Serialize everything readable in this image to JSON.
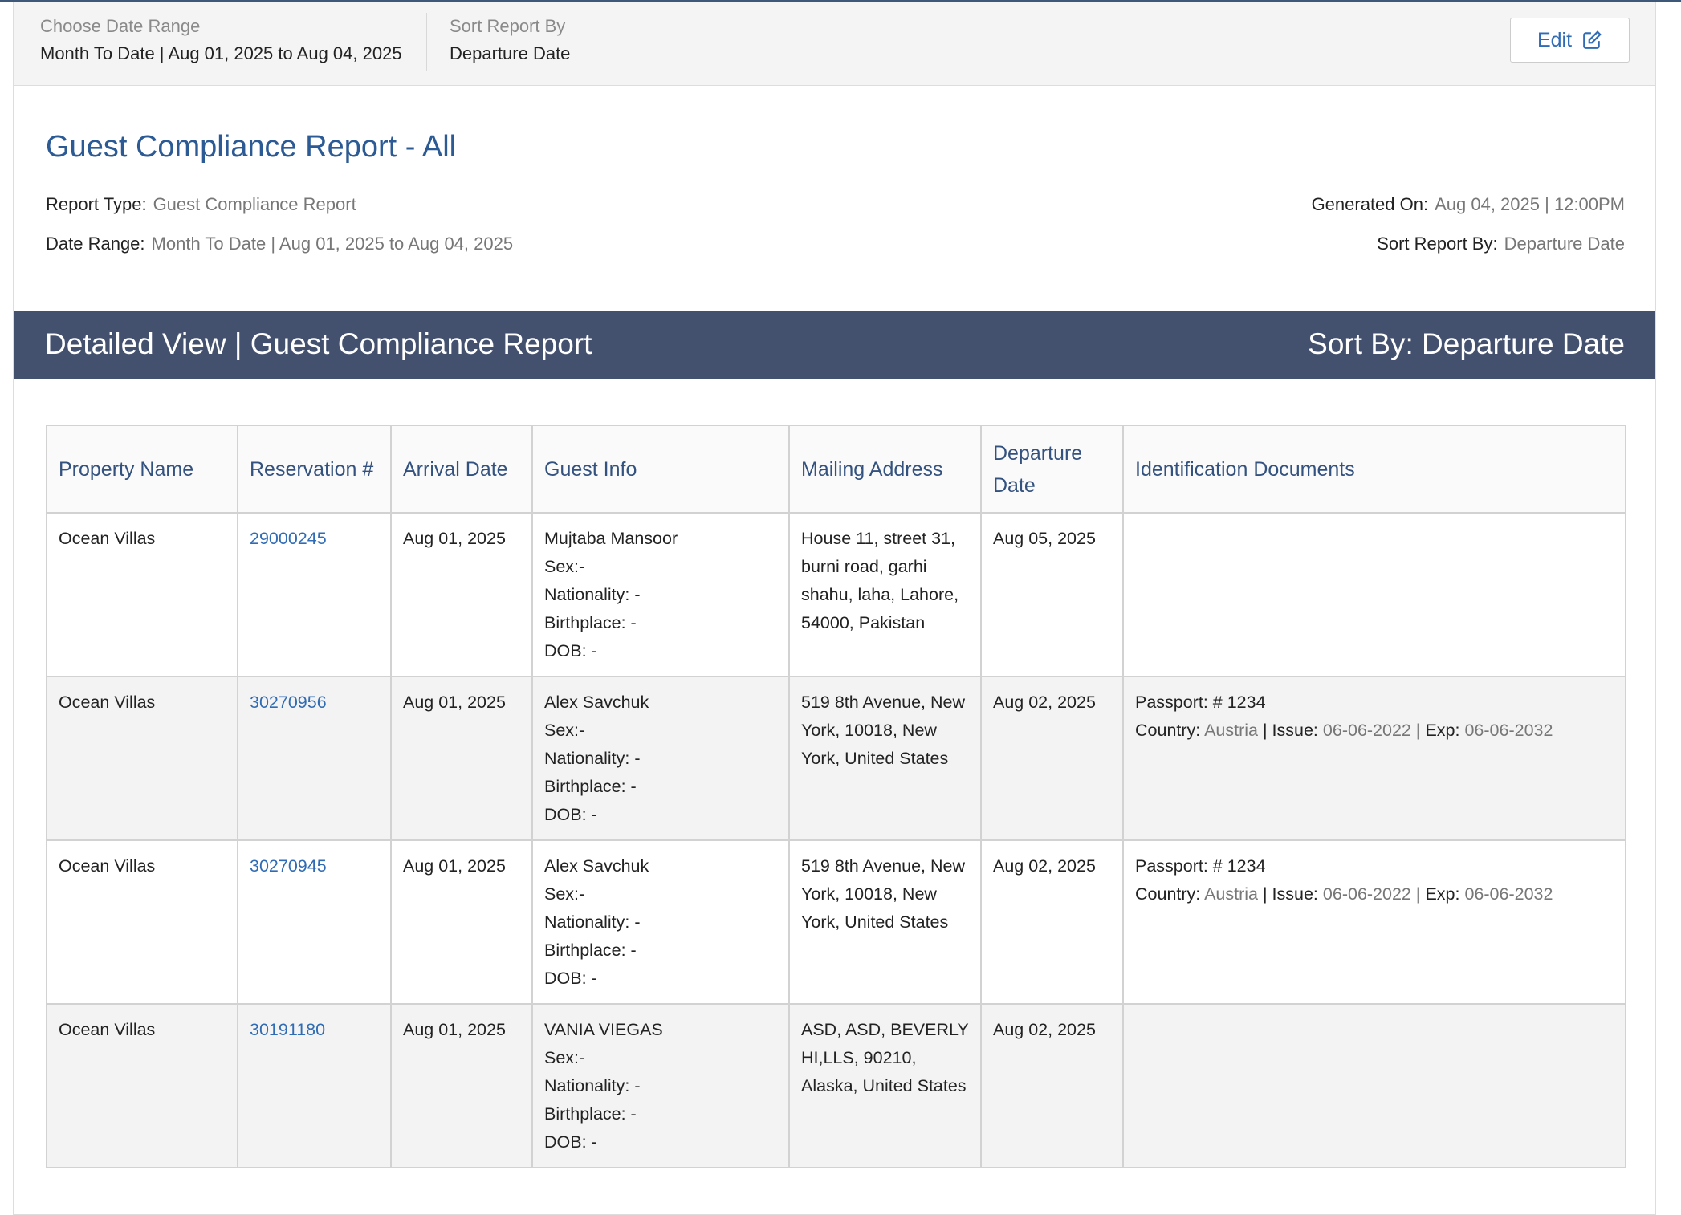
{
  "filters": {
    "date_range_label": "Choose Date Range",
    "date_range": "Month To Date | Aug 01, 2025 to Aug 04, 2025",
    "sort_label": "Sort Report By",
    "sort": "Departure Date",
    "edit": "Edit"
  },
  "report": {
    "title": "Guest Compliance Report - All",
    "type_label": "Report Type:",
    "type": "Guest Compliance Report",
    "range_label": "Date Range:",
    "range": "Month To Date | Aug 01, 2025 to Aug 04, 2025",
    "generated_label": "Generated On:",
    "generated": "Aug 04, 2025 | 12:00PM",
    "sort_label": "Sort Report By:",
    "sort": "Departure Date"
  },
  "band": {
    "title": "Detailed View | Guest Compliance Report",
    "sort": "Sort By: Departure Date"
  },
  "table": {
    "headers": [
      "Property Name",
      "Reservation #",
      "Arrival Date",
      "Guest Info",
      "Mailing Address",
      "Departure Date",
      "Identification Documents"
    ],
    "separator": "|",
    "rows": [
      {
        "property": "Ocean Villas",
        "reservation": "29000245",
        "arrival": "Aug 01, 2025",
        "guest": [
          "Mujtaba Mansoor",
          "Sex:-",
          "Nationality: -",
          "Birthplace: -",
          "DOB: -"
        ],
        "address": "House 11, street 31, burni road, garhi shahu, laha, Lahore, 54000, Pakistan",
        "departure": "Aug 05, 2025",
        "documents": null
      },
      {
        "property": "Ocean Villas",
        "reservation": "30270956",
        "arrival": "Aug 01, 2025",
        "guest": [
          "Alex Savchuk",
          "Sex:-",
          "Nationality: -",
          "Birthplace: -",
          "DOB: -"
        ],
        "address": "519 8th Avenue, New York, 10018, New York, United States",
        "departure": "Aug 02, 2025",
        "documents": {
          "passport": "Passport: # 1234",
          "fields": [
            {
              "label": "Country:",
              "value": "Austria"
            },
            {
              "label": "Issue:",
              "value": "06-06-2022"
            },
            {
              "label": "Exp:",
              "value": "06-06-2032"
            }
          ]
        }
      },
      {
        "property": "Ocean Villas",
        "reservation": "30270945",
        "arrival": "Aug 01, 2025",
        "guest": [
          "Alex Savchuk",
          "Sex:-",
          "Nationality: -",
          "Birthplace: -",
          "DOB: -"
        ],
        "address": "519 8th Avenue, New York, 10018, New York, United States",
        "departure": "Aug 02, 2025",
        "documents": {
          "passport": "Passport: # 1234",
          "fields": [
            {
              "label": "Country:",
              "value": "Austria"
            },
            {
              "label": "Issue:",
              "value": "06-06-2022"
            },
            {
              "label": "Exp:",
              "value": "06-06-2032"
            }
          ]
        }
      },
      {
        "property": "Ocean Villas",
        "reservation": "30191180",
        "arrival": "Aug 01, 2025",
        "guest": [
          "VANIA VIEGAS",
          "Sex:-",
          "Nationality: -",
          "Birthplace: -",
          "DOB: -"
        ],
        "address": "ASD, ASD, BEVERLY HI,LLS, 90210, Alaska, United States",
        "departure": "Aug 02, 2025",
        "documents": null
      }
    ]
  }
}
